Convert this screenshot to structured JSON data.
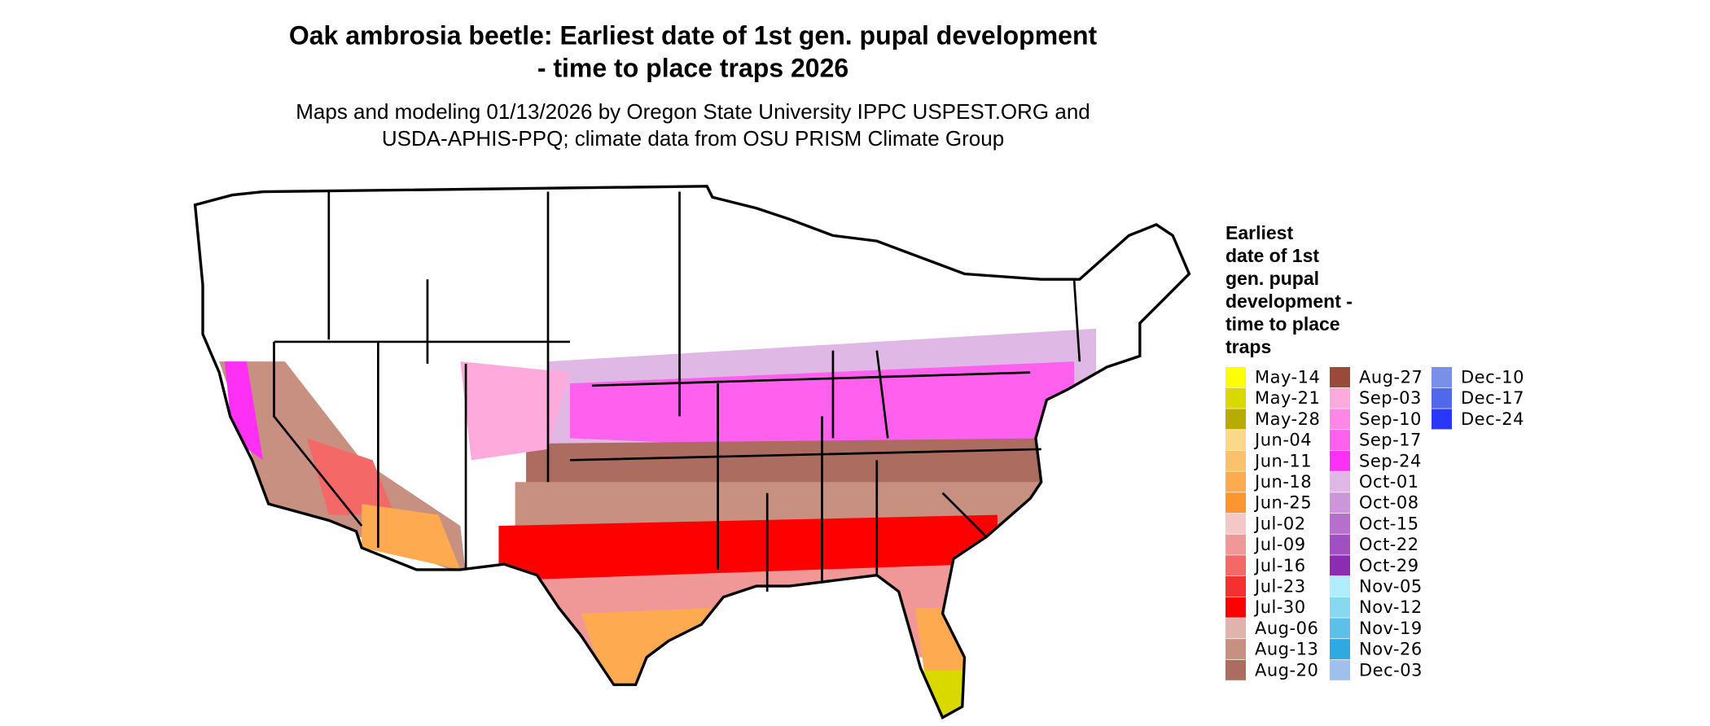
{
  "title": [
    "Oak ambrosia beetle: Earliest date of 1st gen. pupal development",
    "- time to place traps 2026"
  ],
  "subtitle": [
    "Maps and modeling 01/13/2026 by Oregon State University IPPC USPEST.ORG and",
    "USDA-APHIS-PPQ; climate data from OSU PRISM Climate Group"
  ],
  "legend": {
    "title": [
      "Earliest",
      "date of 1st",
      "gen. pupal",
      "development -",
      "time to place",
      "traps"
    ],
    "columns": [
      15,
      15,
      3
    ],
    "items": [
      {
        "label": "May-14",
        "color": "#ffff00"
      },
      {
        "label": "May-21",
        "color": "#d9d900"
      },
      {
        "label": "May-28",
        "color": "#b8ac00"
      },
      {
        "label": "Jun-04",
        "color": "#fcd88a"
      },
      {
        "label": "Jun-11",
        "color": "#fdc06c"
      },
      {
        "label": "Jun-18",
        "color": "#fdaa50"
      },
      {
        "label": "Jun-25",
        "color": "#fd9530"
      },
      {
        "label": "Jul-02",
        "color": "#f5c8c8"
      },
      {
        "label": "Jul-09",
        "color": "#f09898"
      },
      {
        "label": "Jul-16",
        "color": "#f56868"
      },
      {
        "label": "Jul-23",
        "color": "#f53030"
      },
      {
        "label": "Jul-30",
        "color": "#ff0000"
      },
      {
        "label": "Aug-06",
        "color": "#e0b4ac"
      },
      {
        "label": "Aug-13",
        "color": "#c89080"
      },
      {
        "label": "Aug-20",
        "color": "#ac6c60"
      },
      {
        "label": "Aug-27",
        "color": "#9a4a3a"
      },
      {
        "label": "Sep-03",
        "color": "#ffaadd"
      },
      {
        "label": "Sep-10",
        "color": "#ff88e6"
      },
      {
        "label": "Sep-17",
        "color": "#ff60ee"
      },
      {
        "label": "Sep-24",
        "color": "#ff30f5"
      },
      {
        "label": "Oct-01",
        "color": "#e0b8e6"
      },
      {
        "label": "Oct-08",
        "color": "#cc96d8"
      },
      {
        "label": "Oct-15",
        "color": "#b66fcc"
      },
      {
        "label": "Oct-22",
        "color": "#a050c0"
      },
      {
        "label": "Oct-29",
        "color": "#8c2cb0"
      },
      {
        "label": "Nov-05",
        "color": "#b0eeff"
      },
      {
        "label": "Nov-12",
        "color": "#88d8f0"
      },
      {
        "label": "Nov-19",
        "color": "#5cc0e8"
      },
      {
        "label": "Nov-26",
        "color": "#30a8e0"
      },
      {
        "label": "Dec-03",
        "color": "#a0c0ec"
      },
      {
        "label": "Dec-10",
        "color": "#7890e8"
      },
      {
        "label": "Dec-17",
        "color": "#5068ec"
      },
      {
        "label": "Dec-24",
        "color": "#2838f8"
      }
    ]
  }
}
